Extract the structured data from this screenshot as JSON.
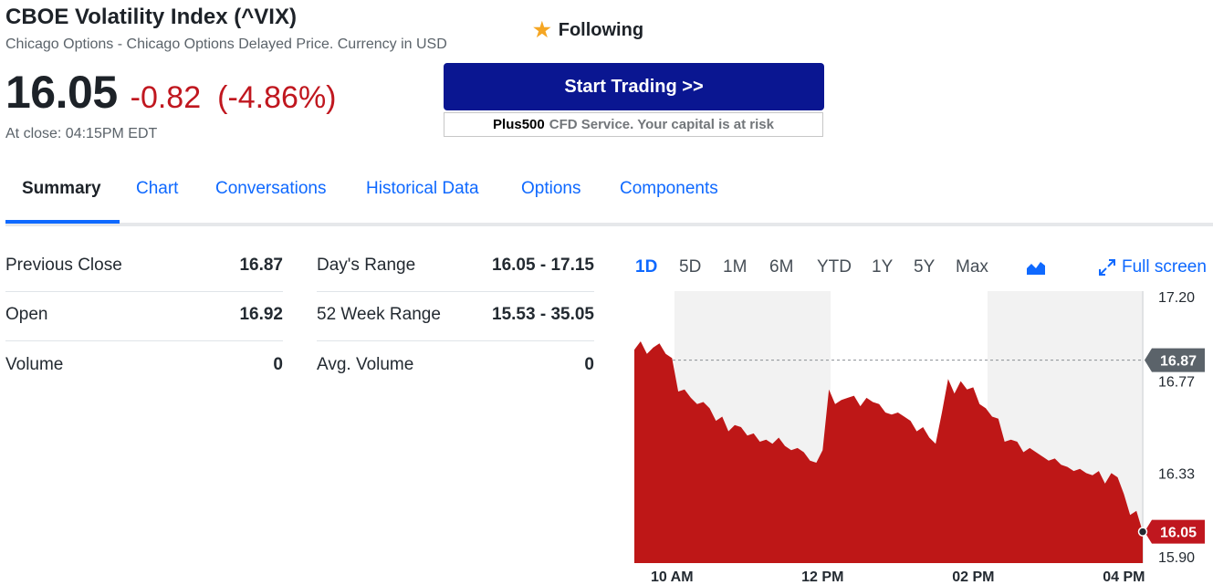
{
  "header": {
    "title": "CBOE Volatility Index (^VIX)",
    "subtitle": "Chicago Options - Chicago Options Delayed Price. Currency in USD",
    "follow_label": "Following",
    "price": "16.05",
    "change": "-0.82",
    "change_pct": "(-4.86%)",
    "close_time": "At close: 04:15PM EDT"
  },
  "ad": {
    "button_label": "Start Trading >>",
    "brand": "Plus500",
    "note": "CFD Service. Your capital is at risk"
  },
  "tabs": [
    "Summary",
    "Chart",
    "Conversations",
    "Historical Data",
    "Options",
    "Components"
  ],
  "stats_left": [
    {
      "label": "Previous Close",
      "value": "16.87"
    },
    {
      "label": "Open",
      "value": "16.92"
    },
    {
      "label": "Volume",
      "value": "0"
    }
  ],
  "stats_right": [
    {
      "label": "Day's Range",
      "value": "16.05 - 17.15"
    },
    {
      "label": "52 Week Range",
      "value": "15.53 - 35.05"
    },
    {
      "label": "Avg. Volume",
      "value": "0"
    }
  ],
  "ranges": [
    "1D",
    "5D",
    "1M",
    "6M",
    "YTD",
    "1Y",
    "5Y",
    "Max"
  ],
  "active_range": "1D",
  "fullscreen_label": "Full screen",
  "colors": {
    "accent": "#0f69ff",
    "down": "#c0171f",
    "brand_button": "#0a1691",
    "area": "#be1717"
  },
  "icons": {
    "follow": "star-icon",
    "chart_type": "area-chart-icon",
    "fullscreen": "expand-icon"
  },
  "chart_data": {
    "type": "area",
    "x_ticks": [
      "10 AM",
      "12 PM",
      "02 PM",
      "04 PM"
    ],
    "y_ticks": [
      "17.20",
      "16.77",
      "16.33",
      "15.90"
    ],
    "ylim": [
      15.9,
      17.2
    ],
    "previous_close": {
      "label": "16.87",
      "value": 16.87
    },
    "last": {
      "label": "16.05",
      "value": 16.05
    },
    "xrange": [
      "09:30",
      "16:15"
    ],
    "x": [
      "09:30",
      "09:35",
      "09:40",
      "09:45",
      "09:50",
      "09:55",
      "10:00",
      "10:05",
      "10:10",
      "10:15",
      "10:20",
      "10:25",
      "10:30",
      "10:35",
      "10:40",
      "10:45",
      "10:50",
      "10:55",
      "11:00",
      "11:05",
      "11:10",
      "11:15",
      "11:20",
      "11:25",
      "11:30",
      "11:35",
      "11:40",
      "11:45",
      "11:50",
      "11:55",
      "12:00",
      "12:05",
      "12:10",
      "12:15",
      "12:20",
      "12:25",
      "12:30",
      "12:35",
      "12:40",
      "12:45",
      "12:50",
      "12:55",
      "13:00",
      "13:05",
      "13:10",
      "13:15",
      "13:20",
      "13:25",
      "13:30",
      "13:35",
      "13:40",
      "13:45",
      "13:50",
      "13:55",
      "14:00",
      "14:05",
      "14:10",
      "14:15",
      "14:20",
      "14:25",
      "14:30",
      "14:35",
      "14:40",
      "14:45",
      "14:50",
      "14:55",
      "15:00",
      "15:05",
      "15:10",
      "15:15",
      "15:20",
      "15:25",
      "15:30",
      "15:35",
      "15:40",
      "15:45",
      "15:50",
      "15:55",
      "16:00",
      "16:05",
      "16:10",
      "16:15"
    ],
    "y": [
      16.92,
      16.96,
      16.9,
      16.93,
      16.95,
      16.9,
      16.88,
      16.72,
      16.73,
      16.69,
      16.66,
      16.67,
      16.64,
      16.58,
      16.6,
      16.53,
      16.56,
      16.55,
      16.51,
      16.52,
      16.48,
      16.49,
      16.47,
      16.5,
      16.46,
      16.44,
      16.45,
      16.43,
      16.39,
      16.38,
      16.44,
      16.73,
      16.66,
      16.68,
      16.69,
      16.7,
      16.65,
      16.69,
      16.67,
      16.66,
      16.62,
      16.61,
      16.62,
      16.6,
      16.58,
      16.53,
      16.55,
      16.5,
      16.47,
      16.62,
      16.78,
      16.71,
      16.77,
      16.73,
      16.74,
      16.66,
      16.64,
      16.6,
      16.59,
      16.48,
      16.49,
      16.48,
      16.43,
      16.45,
      16.43,
      16.41,
      16.39,
      16.4,
      16.37,
      16.36,
      16.34,
      16.35,
      16.33,
      16.32,
      16.34,
      16.28,
      16.33,
      16.31,
      16.23,
      16.13,
      16.15,
      16.05
    ]
  }
}
